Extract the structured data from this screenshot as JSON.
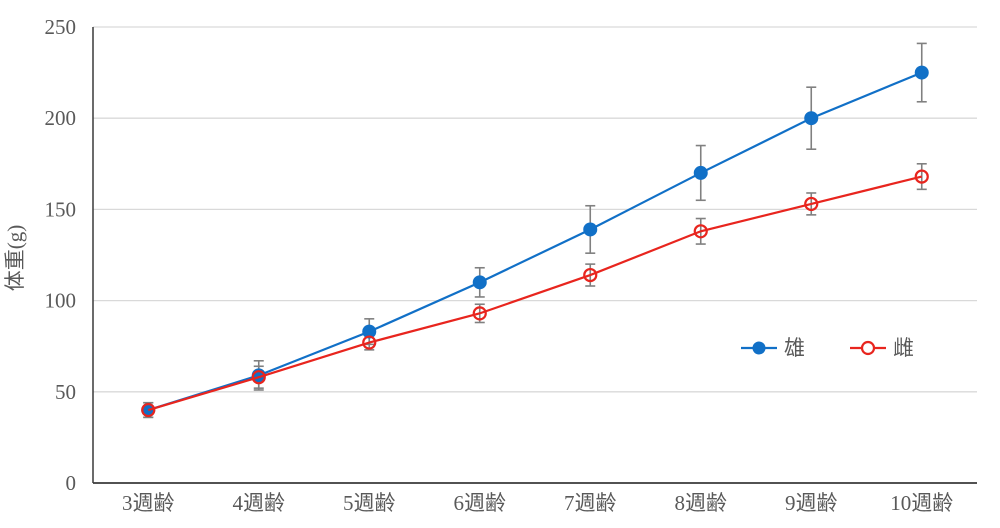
{
  "chart_data": {
    "type": "line",
    "title": "",
    "xlabel": "",
    "ylabel": "体重(g)",
    "categories": [
      "3週齢",
      "4週齢",
      "5週齢",
      "6週齢",
      "7週齢",
      "8週齢",
      "9週齢",
      "10週齢"
    ],
    "y_axis": {
      "min": 0,
      "max": 250,
      "tick_step": 50,
      "tick_labels": [
        "0",
        "50",
        "100",
        "150",
        "200",
        "250"
      ]
    },
    "grid": true,
    "error_bars": true,
    "legend_position": "inside-right",
    "series": [
      {
        "name": "雄",
        "marker": "filled-circle",
        "color": "#1170C7",
        "values": [
          40,
          59,
          83,
          110,
          139,
          170,
          200,
          225
        ],
        "errors": [
          4,
          8,
          7,
          8,
          13,
          15,
          17,
          16
        ]
      },
      {
        "name": "雌",
        "marker": "open-circle",
        "color": "#E8251E",
        "values": [
          40,
          58,
          77,
          93,
          114,
          138,
          153,
          168
        ],
        "errors": [
          4,
          6,
          4,
          5,
          6,
          7,
          6,
          7
        ]
      }
    ],
    "colors": {
      "gridline": "#D9D9D9",
      "axis": "#3A3A3A",
      "tick_text": "#595959",
      "error_bar": "#808080",
      "background": "#FFFFFF"
    }
  }
}
